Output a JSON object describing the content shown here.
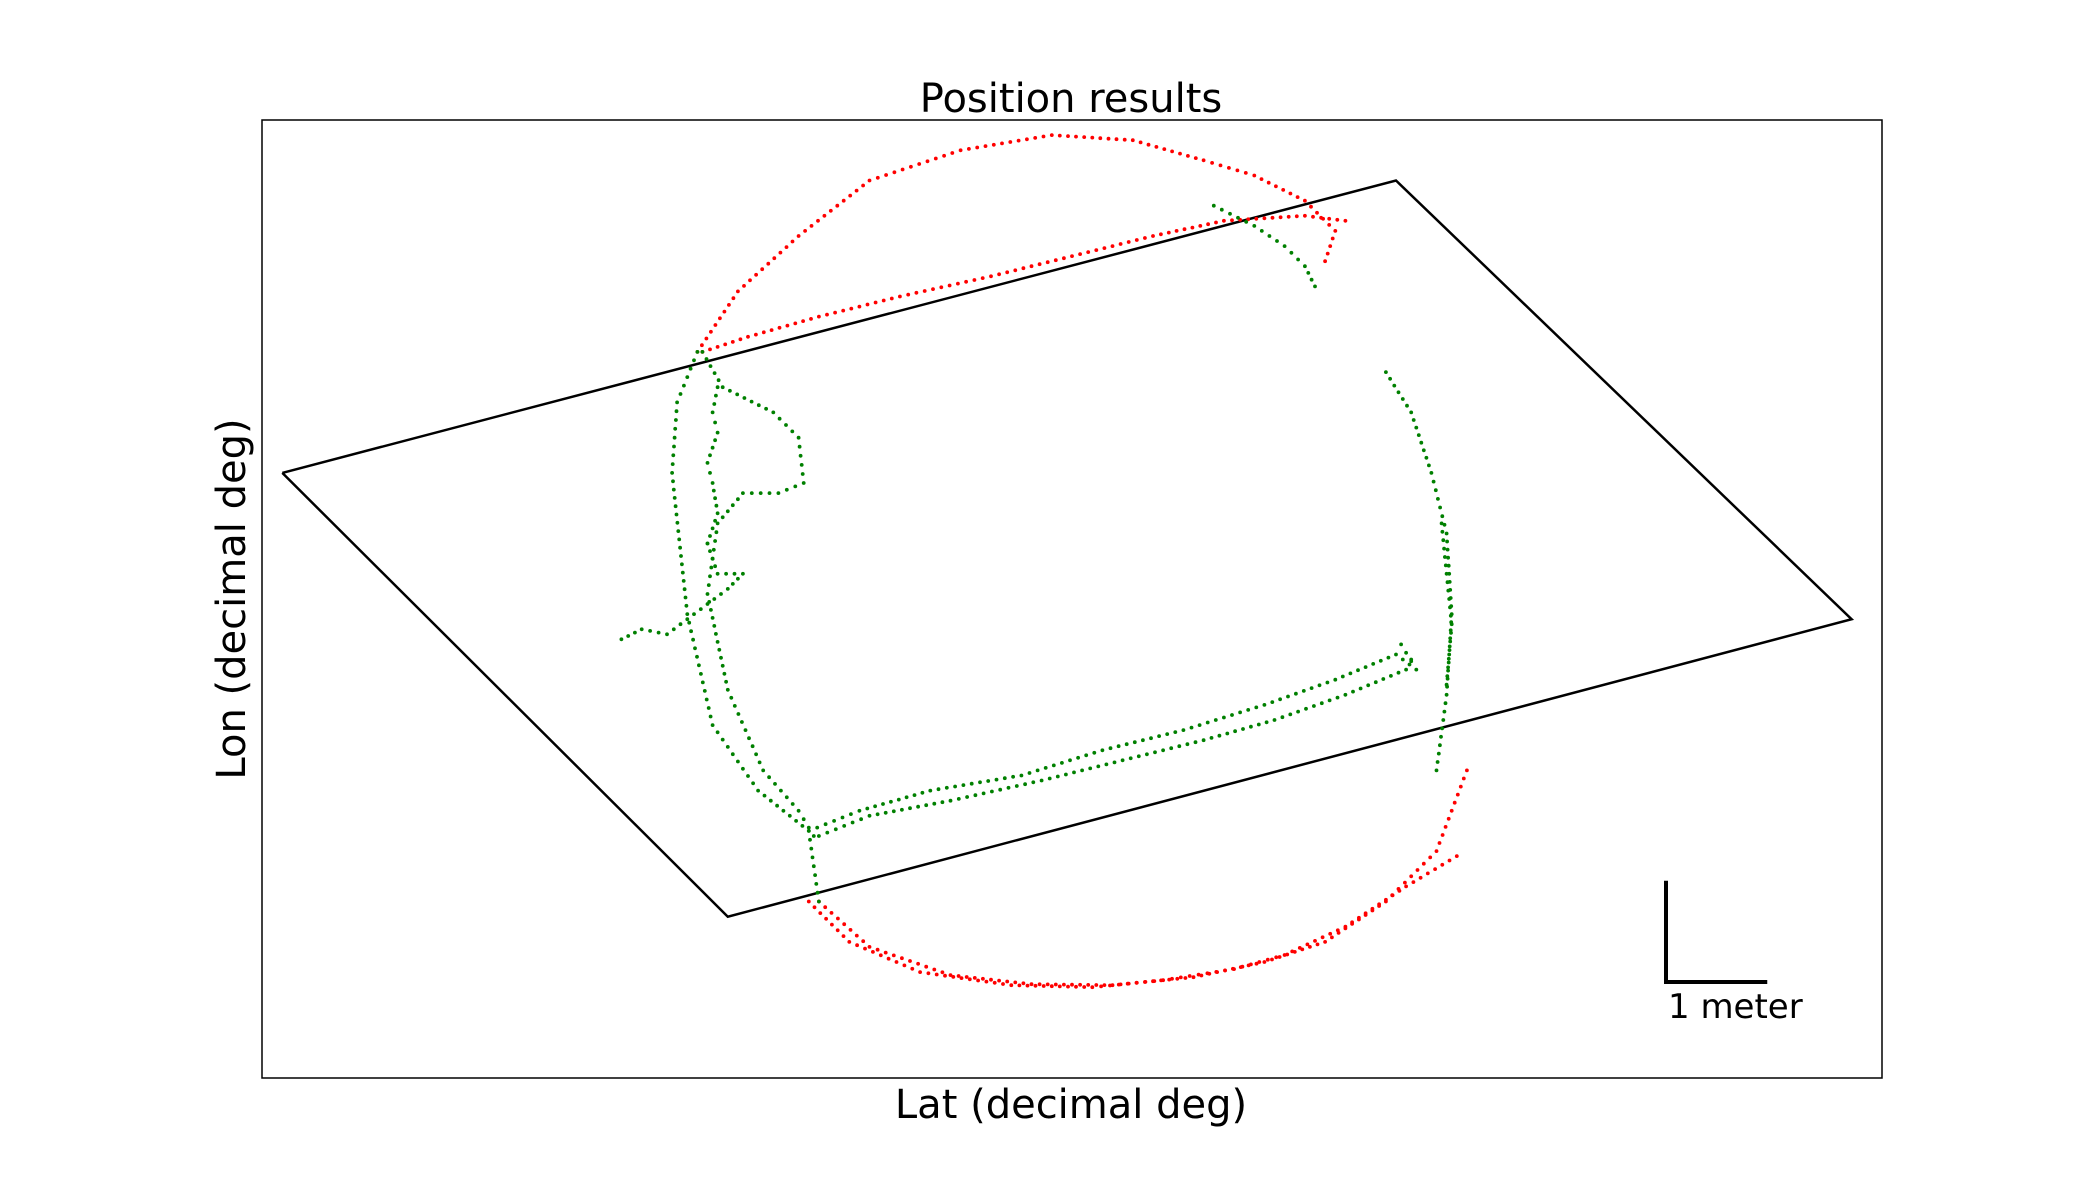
{
  "chart_data": {
    "type": "scatter",
    "title": "Position results",
    "xlabel": "Lat (decimal deg)",
    "ylabel": "Lon (decimal deg)",
    "xlim": [
      0,
      16.0
    ],
    "ylim": [
      0,
      9.5
    ],
    "grid": false,
    "legend": "none",
    "ticks_visible": false,
    "scale_bar": {
      "label": "1 meter",
      "length": 1.0
    },
    "boundary": {
      "color": "#000000",
      "x": [
        0.2,
        11.2,
        15.7,
        4.6,
        0.2
      ],
      "y": [
        6.0,
        8.9,
        4.55,
        1.6,
        6.0
      ]
    },
    "series": [
      {
        "color": "#ff0000",
        "segments": [
          {
            "x": [
              4.3,
              4.7,
              5.3,
              6.0,
              6.9,
              7.8,
              8.6,
              9.3,
              9.8,
              10.3,
              10.6,
              10.5
            ],
            "y": [
              7.2,
              7.8,
              8.35,
              8.9,
              9.2,
              9.35,
              9.3,
              9.1,
              8.95,
              8.7,
              8.4,
              8.1
            ]
          },
          {
            "x": [
              4.35,
              4.8,
              5.5,
              6.3,
              7.2,
              8.0,
              8.8,
              9.5,
              10.3,
              10.7
            ],
            "y": [
              7.2,
              7.35,
              7.55,
              7.75,
              7.95,
              8.15,
              8.35,
              8.5,
              8.55,
              8.5
            ]
          },
          {
            "x": [
              5.4,
              5.8,
              6.5,
              7.4,
              8.2,
              8.9,
              9.6,
              10.1,
              10.7,
              11.3,
              11.8
            ],
            "y": [
              1.75,
              1.35,
              1.05,
              0.92,
              0.9,
              0.97,
              1.08,
              1.22,
              1.5,
              1.9,
              2.2
            ]
          },
          {
            "x": [
              5.5,
              6.0,
              6.8,
              7.6,
              8.4,
              9.2,
              9.9,
              10.5,
              11.1,
              11.6,
              11.9
            ],
            "y": [
              1.75,
              1.3,
              1.02,
              0.93,
              0.92,
              1.0,
              1.15,
              1.35,
              1.75,
              2.25,
              3.05
            ]
          }
        ]
      },
      {
        "color": "#008000",
        "segments": [
          {
            "x": [
              4.3,
              4.1,
              4.05,
              4.2,
              4.45,
              4.9,
              5.4,
              5.5
            ],
            "y": [
              7.2,
              6.7,
              6.0,
              4.6,
              3.5,
              2.85,
              2.45,
              1.75
            ]
          },
          {
            "x": [
              4.35,
              4.55,
              5.05,
              5.3,
              5.35,
              5.1,
              4.75,
              4.5,
              4.4,
              4.6,
              4.95,
              5.3,
              5.45
            ],
            "y": [
              7.2,
              6.85,
              6.6,
              6.35,
              5.9,
              5.8,
              5.8,
              5.5,
              4.8,
              3.85,
              3.05,
              2.65,
              2.4
            ]
          },
          {
            "x": [
              4.5,
              4.45,
              4.5,
              4.4,
              4.45,
              4.5,
              4.4
            ],
            "y": [
              6.85,
              6.6,
              6.4,
              6.1,
              5.9,
              5.6,
              5.3
            ]
          },
          {
            "x": [
              4.4,
              4.5,
              4.75,
              4.6,
              4.4,
              4.0,
              3.75,
              3.55
            ],
            "y": [
              5.3,
              5.0,
              5.0,
              4.85,
              4.7,
              4.4,
              4.45,
              4.35
            ]
          },
          {
            "x": [
              5.4,
              5.9,
              6.6,
              7.5,
              8.3,
              9.1,
              9.9,
              10.6,
              11.2,
              11.4,
              11.25
            ],
            "y": [
              2.45,
              2.65,
              2.85,
              3.0,
              3.25,
              3.45,
              3.7,
              3.95,
              4.2,
              4.05,
              4.3
            ]
          },
          {
            "x": [
              5.5,
              6.0,
              6.8,
              7.7,
              8.5,
              9.3,
              10.0,
              10.7,
              11.3,
              11.35
            ],
            "y": [
              2.4,
              2.6,
              2.75,
              2.95,
              3.15,
              3.35,
              3.55,
              3.8,
              4.05,
              4.15
            ]
          },
          {
            "x": [
              11.1,
              11.35,
              11.55,
              11.7,
              11.75,
              11.7,
              11.6
            ],
            "y": [
              7.0,
              6.6,
              6.0,
              5.4,
              4.6,
              3.8,
              3.05
            ]
          },
          {
            "x": [
              11.65,
              11.7,
              11.75,
              11.7
            ],
            "y": [
              5.5,
              5.0,
              4.5,
              3.9
            ]
          },
          {
            "x": [
              9.4,
              9.8,
              10.1,
              10.3,
              10.4
            ],
            "y": [
              8.65,
              8.45,
              8.25,
              8.05,
              7.85
            ]
          }
        ]
      }
    ]
  }
}
